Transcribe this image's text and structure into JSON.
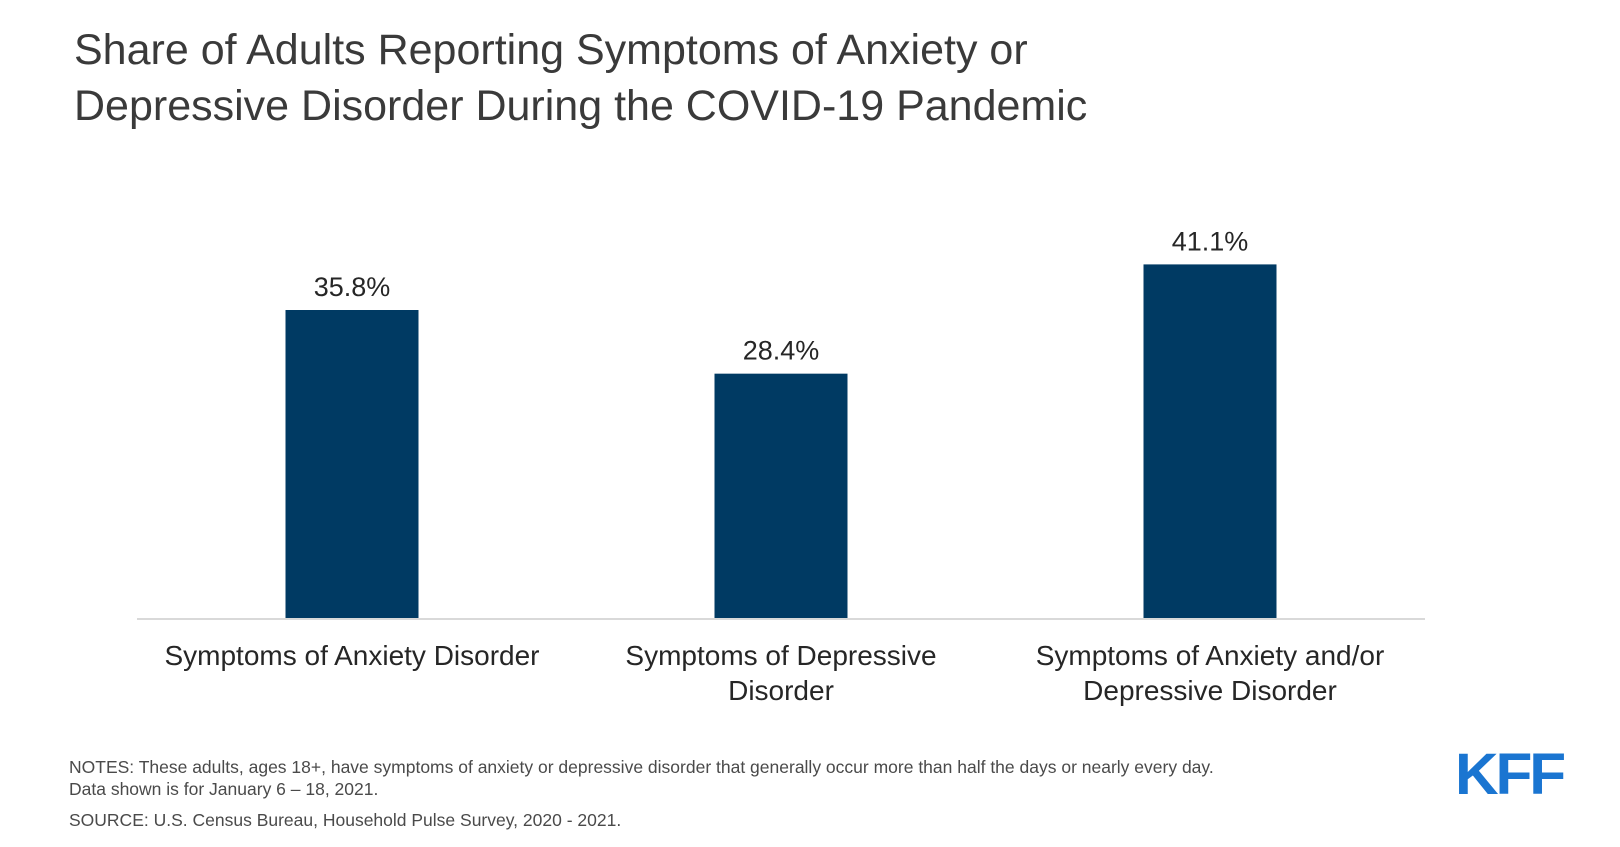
{
  "title_lines": [
    "Share of Adults Reporting Symptoms of Anxiety or",
    "Depressive Disorder During the COVID-19 Pandemic"
  ],
  "notes": {
    "line1": "NOTES: These adults, ages 18+, have symptoms of anxiety or depressive disorder that generally occur more than half the days or nearly every day.",
    "line2": "Data shown is for January 6 – 18, 2021.",
    "source": "SOURCE: U.S. Census Bureau, Household Pulse Survey, 2020 - 2021."
  },
  "logo_text": "KFF",
  "colors": {
    "bar": "#003a63",
    "logo": "#1a75d1",
    "axis": "#d9d9d9",
    "text": "#262626"
  },
  "chart_data": {
    "type": "bar",
    "title": "Share of Adults Reporting Symptoms of Anxiety or Depressive Disorder During the COVID-19 Pandemic",
    "categories": [
      [
        "Symptoms of Anxiety Disorder"
      ],
      [
        "Symptoms of Depressive",
        "Disorder"
      ],
      [
        "Symptoms of Anxiety and/or",
        "Depressive Disorder"
      ]
    ],
    "values": [
      35.8,
      28.4,
      41.1
    ],
    "data_labels": [
      "35.8%",
      "28.4%",
      "41.1%"
    ],
    "ylim": [
      0,
      50
    ],
    "grid": false,
    "legend": "none"
  }
}
